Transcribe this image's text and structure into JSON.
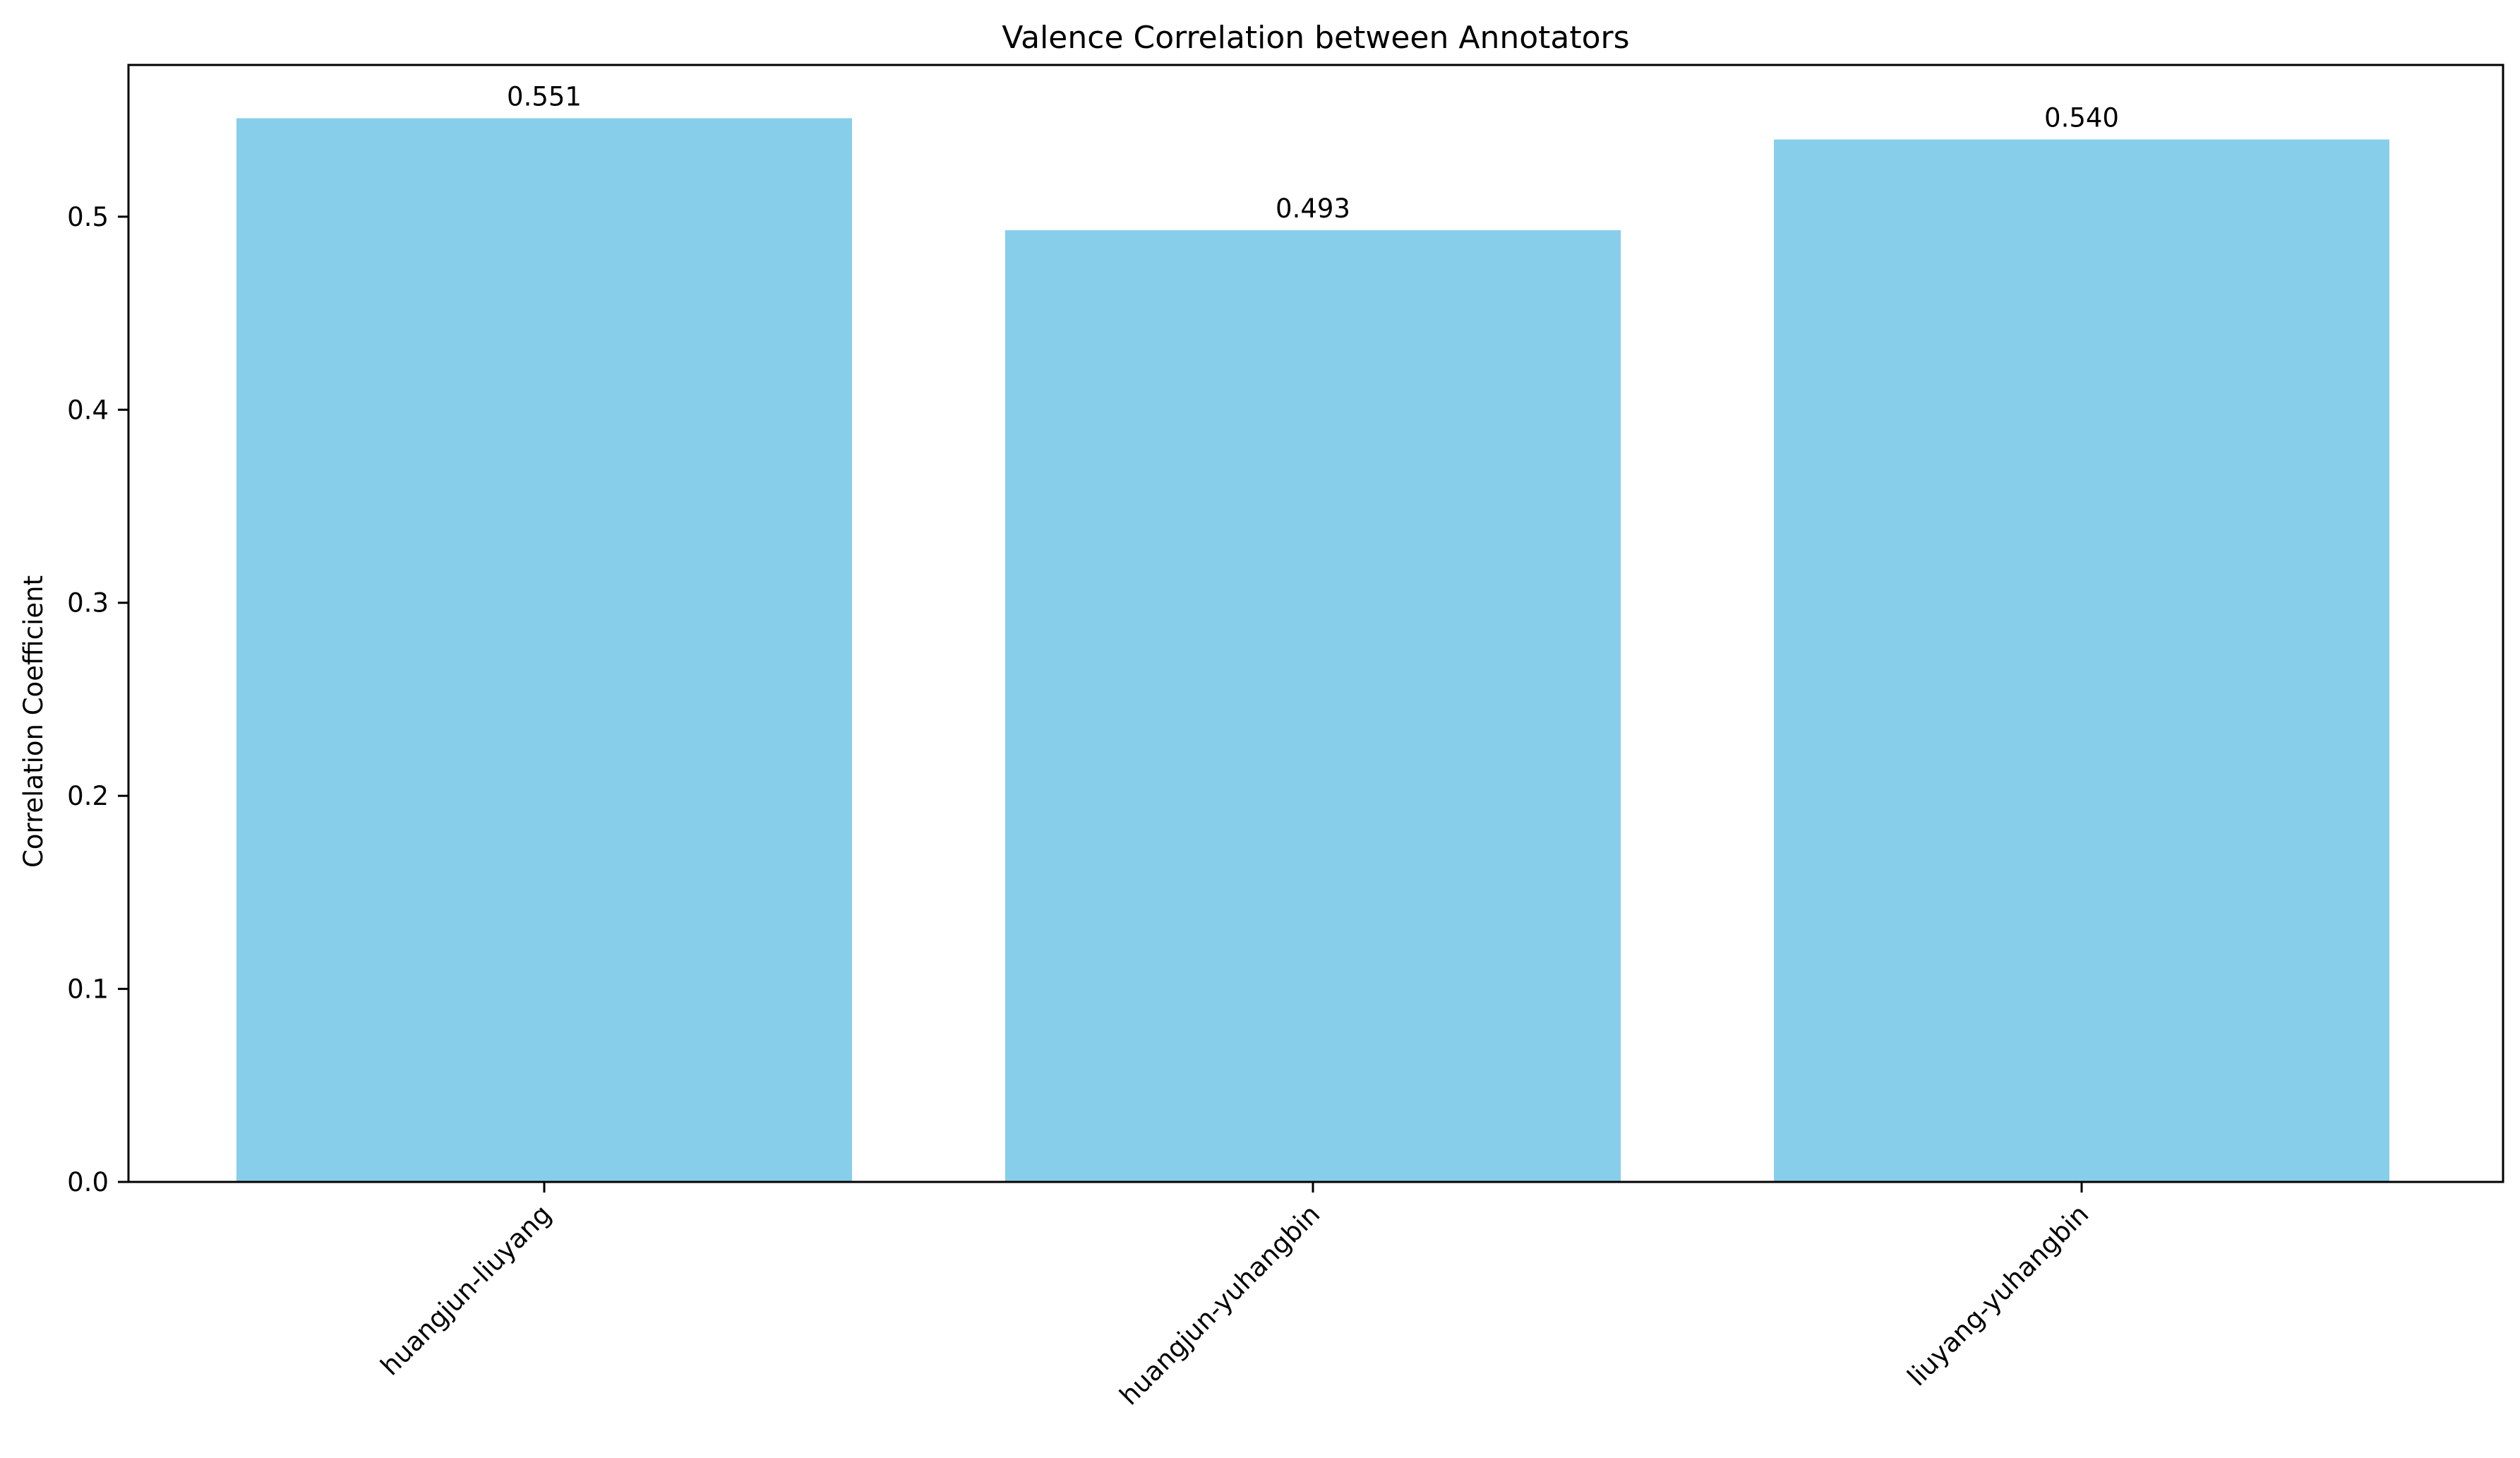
{
  "chart_data": {
    "type": "bar",
    "title": "Valence Correlation between Annotators",
    "xlabel": "",
    "ylabel": "Correlation Coefficient",
    "categories": [
      "huangjun-liuyang",
      "huangjun-yuhangbin",
      "liuyang-yuhangbin"
    ],
    "values": [
      0.551,
      0.493,
      0.54
    ],
    "value_labels": [
      "0.551",
      "0.493",
      "0.540"
    ],
    "yticks": [
      0.0,
      0.1,
      0.2,
      0.3,
      0.4,
      0.5
    ],
    "ytick_labels": [
      "0.0",
      "0.1",
      "0.2",
      "0.3",
      "0.4",
      "0.5"
    ],
    "ylim": [
      0,
      0.5786
    ],
    "grid": false,
    "bar_color": "#87ceeb",
    "xtick_rotation": "45deg"
  }
}
